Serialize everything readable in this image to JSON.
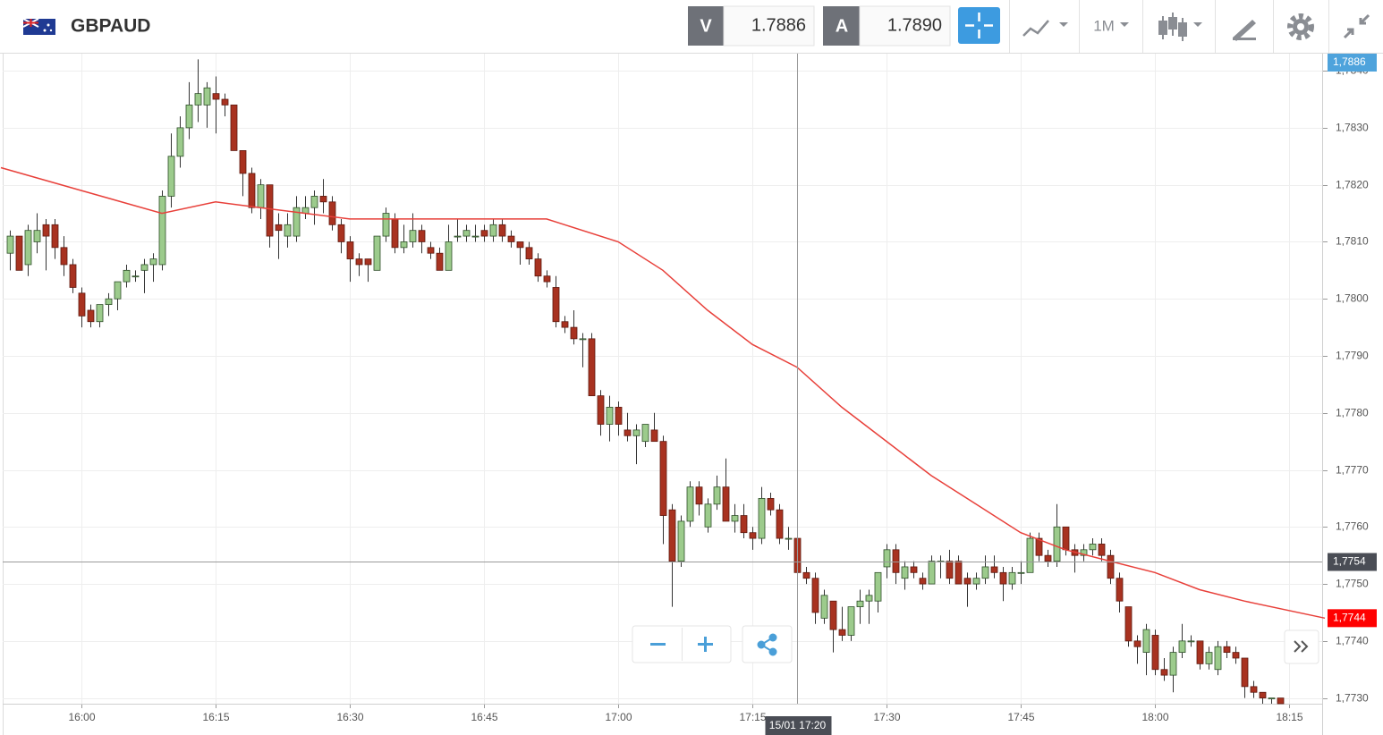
{
  "header": {
    "symbol": "GBPAUD",
    "sell_label": "V",
    "sell_price": "1.7886",
    "buy_label": "A",
    "buy_price": "1.7890",
    "timeframe": "1M"
  },
  "chart_data": {
    "type": "candlestick",
    "x": [
      "15:52",
      "15:53",
      "15:54",
      "15:55",
      "15:56",
      "15:57",
      "15:58",
      "15:59",
      "16:00",
      "16:01",
      "16:02",
      "16:03",
      "16:04",
      "16:05",
      "16:06",
      "16:07",
      "16:08",
      "16:09",
      "16:10",
      "16:11",
      "16:12",
      "16:13",
      "16:14",
      "16:15",
      "16:16",
      "16:17",
      "16:18",
      "16:19",
      "16:20",
      "16:21",
      "16:22",
      "16:23",
      "16:24",
      "16:25",
      "16:26",
      "16:27",
      "16:28",
      "16:29",
      "16:30",
      "16:31",
      "16:32",
      "16:33",
      "16:34",
      "16:35",
      "16:36",
      "16:37",
      "16:38",
      "16:39",
      "16:40",
      "16:41",
      "16:42",
      "16:43",
      "16:44",
      "16:45",
      "16:46",
      "16:47",
      "16:48",
      "16:49",
      "16:50",
      "16:51",
      "16:52",
      "16:53",
      "16:54",
      "16:55",
      "16:56",
      "16:57",
      "16:58",
      "16:59",
      "17:00",
      "17:01",
      "17:02",
      "17:03",
      "17:04",
      "17:05",
      "17:06",
      "17:07",
      "17:08",
      "17:09",
      "17:10",
      "17:11",
      "17:12",
      "17:13",
      "17:14",
      "17:15",
      "17:16",
      "17:17",
      "17:18",
      "17:19",
      "17:20",
      "17:21",
      "17:22",
      "17:23",
      "17:24",
      "17:25",
      "17:26",
      "17:27",
      "17:28",
      "17:29",
      "17:30",
      "17:31",
      "17:32",
      "17:33",
      "17:34",
      "17:35",
      "17:36",
      "17:37",
      "17:38",
      "17:39",
      "17:40",
      "17:41",
      "17:42",
      "17:43",
      "17:44",
      "17:45",
      "17:46",
      "17:47",
      "17:48",
      "17:49",
      "17:50",
      "17:51",
      "17:52",
      "17:53",
      "17:54",
      "17:55",
      "17:56",
      "17:57",
      "17:58",
      "17:59",
      "18:00",
      "18:01",
      "18:02",
      "18:03",
      "18:04",
      "18:05",
      "18:06",
      "18:07",
      "18:08",
      "18:09",
      "18:10",
      "18:11",
      "18:12",
      "18:13",
      "18:14"
    ],
    "open": [
      1.7808,
      1.7811,
      1.7806,
      1.781,
      1.7813,
      1.7813,
      1.7809,
      1.7806,
      1.7801,
      1.7798,
      1.7796,
      1.7799,
      1.78,
      1.7803,
      1.7804,
      1.7805,
      1.7806,
      1.7806,
      1.7818,
      1.7825,
      1.783,
      1.7834,
      1.7834,
      1.7836,
      1.7835,
      1.7834,
      1.7826,
      1.7822,
      1.7816,
      1.782,
      1.7813,
      1.7811,
      1.7811,
      1.7815,
      1.7816,
      1.7818,
      1.7817,
      1.7813,
      1.781,
      1.7807,
      1.7807,
      1.7805,
      1.7811,
      1.7814,
      1.7809,
      1.781,
      1.7812,
      1.7809,
      1.7808,
      1.7805,
      1.7811,
      1.7811,
      1.7811,
      1.7812,
      1.7811,
      1.7813,
      1.7811,
      1.781,
      1.7809,
      1.7807,
      1.7804,
      1.7802,
      1.7796,
      1.7795,
      1.7793,
      1.7793,
      1.7783,
      1.7778,
      1.7781,
      1.7777,
      1.7776,
      1.7775,
      1.7777,
      1.7775,
      1.7763,
      1.7754,
      1.7761,
      1.7767,
      1.776,
      1.7764,
      1.7767,
      1.7761,
      1.7762,
      1.7759,
      1.7758,
      1.7765,
      1.7763,
      1.7758,
      1.7758,
      1.7752,
      1.7751,
      1.7744,
      1.7747,
      1.7742,
      1.7741,
      1.7746,
      1.7747,
      1.7747,
      1.7753,
      1.7756,
      1.7751,
      1.7753,
      1.7751,
      1.775,
      1.7754,
      1.7754,
      1.7754,
      1.7751,
      1.775,
      1.7751,
      1.7753,
      1.7752,
      1.775,
      1.7752,
      1.7752,
      1.7758,
      1.7755,
      1.7754,
      1.776,
      1.7756,
      1.7755,
      1.7756,
      1.7757,
      1.7755,
      1.7751,
      1.7746,
      1.774,
      1.7738,
      1.7741,
      1.7735,
      1.7734,
      1.7738,
      1.774,
      1.774,
      1.7736,
      1.7735,
      1.7739,
      1.7738,
      1.7737,
      1.7732,
      1.7731,
      1.773,
      1.773
    ],
    "high": [
      1.7812,
      1.7811,
      1.7813,
      1.7815,
      1.7814,
      1.7814,
      1.7811,
      1.7807,
      1.7802,
      1.7799,
      1.7799,
      1.7801,
      1.7803,
      1.7806,
      1.7805,
      1.7807,
      1.7808,
      1.7819,
      1.7829,
      1.7832,
      1.7838,
      1.7842,
      1.7838,
      1.7839,
      1.7836,
      1.7834,
      1.7826,
      1.7823,
      1.7821,
      1.782,
      1.7815,
      1.7815,
      1.7818,
      1.7818,
      1.7819,
      1.7821,
      1.7818,
      1.7814,
      1.7811,
      1.7808,
      1.7807,
      1.7811,
      1.7816,
      1.7815,
      1.7813,
      1.7815,
      1.7813,
      1.781,
      1.7809,
      1.7813,
      1.7814,
      1.7813,
      1.7813,
      1.7813,
      1.7814,
      1.7814,
      1.7812,
      1.781,
      1.781,
      1.7808,
      1.7805,
      1.7804,
      1.7797,
      1.7798,
      1.7794,
      1.7794,
      1.7784,
      1.7783,
      1.7782,
      1.778,
      1.7778,
      1.7778,
      1.778,
      1.7776,
      1.7764,
      1.7762,
      1.7768,
      1.7768,
      1.7765,
      1.7769,
      1.7772,
      1.7764,
      1.7764,
      1.776,
      1.7767,
      1.7766,
      1.7764,
      1.776,
      1.7758,
      1.7753,
      1.7752,
      1.7749,
      1.7747,
      1.7746,
      1.7746,
      1.7749,
      1.7749,
      1.7752,
      1.7757,
      1.7757,
      1.7754,
      1.7754,
      1.7752,
      1.7755,
      1.7755,
      1.7756,
      1.7755,
      1.7752,
      1.7752,
      1.7755,
      1.7755,
      1.7753,
      1.7753,
      1.7754,
      1.7759,
      1.7759,
      1.7756,
      1.7764,
      1.776,
      1.7757,
      1.7757,
      1.7758,
      1.7758,
      1.7756,
      1.7752,
      1.7746,
      1.7741,
      1.7743,
      1.7742,
      1.7737,
      1.7739,
      1.7743,
      1.7741,
      1.774,
      1.7739,
      1.774,
      1.774,
      1.7739,
      1.7737,
      1.7733,
      1.7731,
      1.773,
      1.773
    ],
    "low": [
      1.7805,
      1.7805,
      1.7804,
      1.7808,
      1.7805,
      1.7807,
      1.7804,
      1.7801,
      1.7795,
      1.7795,
      1.7795,
      1.7797,
      1.7798,
      1.7802,
      1.7803,
      1.7801,
      1.7803,
      1.7805,
      1.7816,
      1.7823,
      1.7828,
      1.7831,
      1.783,
      1.7829,
      1.7832,
      1.7826,
      1.7818,
      1.7815,
      1.7814,
      1.7809,
      1.7807,
      1.7809,
      1.781,
      1.7814,
      1.7813,
      1.7815,
      1.7812,
      1.7808,
      1.7803,
      1.7804,
      1.7803,
      1.7805,
      1.781,
      1.7808,
      1.7808,
      1.7809,
      1.7808,
      1.7807,
      1.7805,
      1.7805,
      1.781,
      1.781,
      1.781,
      1.781,
      1.781,
      1.781,
      1.7809,
      1.7806,
      1.7806,
      1.7803,
      1.7802,
      1.7795,
      1.7794,
      1.7792,
      1.7788,
      1.7783,
      1.7776,
      1.7775,
      1.7776,
      1.7775,
      1.7771,
      1.7774,
      1.7775,
      1.7757,
      1.7746,
      1.7753,
      1.776,
      1.7762,
      1.7759,
      1.7763,
      1.7761,
      1.7759,
      1.7758,
      1.7756,
      1.7757,
      1.7762,
      1.7757,
      1.7756,
      1.775,
      1.775,
      1.7743,
      1.7743,
      1.7738,
      1.774,
      1.774,
      1.7743,
      1.7743,
      1.7745,
      1.7751,
      1.775,
      1.7749,
      1.7751,
      1.7749,
      1.775,
      1.7751,
      1.775,
      1.775,
      1.7746,
      1.7749,
      1.775,
      1.7751,
      1.7747,
      1.7749,
      1.775,
      1.7752,
      1.7754,
      1.7753,
      1.7753,
      1.7755,
      1.7752,
      1.7754,
      1.7755,
      1.7754,
      1.775,
      1.7745,
      1.7739,
      1.7736,
      1.7734,
      1.7734,
      1.7733,
      1.7731,
      1.7737,
      1.7739,
      1.7735,
      1.7735,
      1.7734,
      1.7737,
      1.7736,
      1.773,
      1.773,
      1.7729,
      1.7729,
      1.7729
    ],
    "close": [
      1.7811,
      1.7805,
      1.7812,
      1.7812,
      1.7811,
      1.7809,
      1.7806,
      1.7802,
      1.7797,
      1.7796,
      1.7799,
      1.78,
      1.7803,
      1.7805,
      1.7804,
      1.7806,
      1.7807,
      1.7818,
      1.7825,
      1.783,
      1.7834,
      1.7836,
      1.7837,
      1.7835,
      1.7834,
      1.7826,
      1.7822,
      1.7816,
      1.782,
      1.7811,
      1.7812,
      1.7813,
      1.7816,
      1.7816,
      1.7818,
      1.7817,
      1.7813,
      1.781,
      1.7807,
      1.7806,
      1.7806,
      1.7811,
      1.7815,
      1.7809,
      1.781,
      1.7812,
      1.781,
      1.7808,
      1.7805,
      1.781,
      1.7811,
      1.7812,
      1.7811,
      1.7811,
      1.7813,
      1.7811,
      1.781,
      1.7809,
      1.7807,
      1.7804,
      1.7803,
      1.7796,
      1.7795,
      1.7793,
      1.7793,
      1.7783,
      1.7778,
      1.7781,
      1.7778,
      1.7776,
      1.7777,
      1.7778,
      1.7775,
      1.7762,
      1.7754,
      1.7761,
      1.7767,
      1.7764,
      1.7764,
      1.7767,
      1.7761,
      1.7762,
      1.7759,
      1.7758,
      1.7765,
      1.7763,
      1.7758,
      1.7758,
      1.7752,
      1.7751,
      1.7745,
      1.7748,
      1.7742,
      1.7741,
      1.7746,
      1.7747,
      1.7748,
      1.7752,
      1.7756,
      1.7752,
      1.7753,
      1.7752,
      1.775,
      1.7754,
      1.7754,
      1.7751,
      1.775,
      1.775,
      1.7751,
      1.7753,
      1.7752,
      1.775,
      1.7752,
      1.7752,
      1.7758,
      1.7755,
      1.7754,
      1.776,
      1.7756,
      1.7755,
      1.7756,
      1.7757,
      1.7755,
      1.7751,
      1.7747,
      1.774,
      1.7739,
      1.7742,
      1.7735,
      1.7734,
      1.7738,
      1.774,
      1.774,
      1.7736,
      1.7738,
      1.7739,
      1.7738,
      1.7737,
      1.7732,
      1.7731,
      1.773,
      1.773,
      1.7729
    ],
    "up_color": "#9ccb8c",
    "down_color": "#a83220",
    "moving_average": {
      "color": "#e8403a",
      "x": [
        "15:51",
        "16:00",
        "16:09",
        "16:15",
        "16:20",
        "16:30",
        "16:45",
        "16:52",
        "17:00",
        "17:05",
        "17:10",
        "17:15",
        "17:20",
        "17:25",
        "17:30",
        "17:35",
        "17:40",
        "17:45",
        "17:50",
        "17:55",
        "18:00",
        "18:05",
        "18:10",
        "18:19"
      ],
      "values": [
        1.7823,
        1.7819,
        1.7815,
        1.7817,
        1.7816,
        1.7814,
        1.7814,
        1.7814,
        1.781,
        1.7805,
        1.7798,
        1.7792,
        1.7788,
        1.7781,
        1.7775,
        1.7769,
        1.7764,
        1.7759,
        1.7756,
        1.7754,
        1.7752,
        1.7749,
        1.7747,
        1.7744
      ]
    },
    "xlim": [
      "15:51",
      "18:19"
    ],
    "xticks": [
      "16:00",
      "16:15",
      "16:30",
      "16:45",
      "17:00",
      "17:15",
      "17:30",
      "17:45",
      "18:00",
      "18:15"
    ],
    "ylim": [
      1.7729,
      1.7843
    ],
    "yticks": [
      {
        "value": 1.773,
        "label": "1,7730"
      },
      {
        "value": 1.774,
        "label": "1,7740"
      },
      {
        "value": 1.775,
        "label": "1,7750"
      },
      {
        "value": 1.776,
        "label": "1,7760"
      },
      {
        "value": 1.777,
        "label": "1,7770"
      },
      {
        "value": 1.778,
        "label": "1,7780"
      },
      {
        "value": 1.779,
        "label": "1,7790"
      },
      {
        "value": 1.78,
        "label": "1,7800"
      },
      {
        "value": 1.781,
        "label": "1,7810"
      },
      {
        "value": 1.782,
        "label": "1,7820"
      },
      {
        "value": 1.783,
        "label": "1,7830"
      },
      {
        "value": 1.784,
        "label": "1,7840"
      }
    ],
    "grid": true,
    "price_tags": [
      {
        "value": 1.7886,
        "label": "1,7886",
        "color": "#4ea3dc"
      },
      {
        "value": 1.7744,
        "label": "1,7744",
        "color": "#ff0000"
      }
    ],
    "crosshair": {
      "x": "17:20",
      "x_label": "15/01 17:20",
      "y": 1.7754,
      "y_label": "1,7754",
      "color": "#4a4d55"
    }
  }
}
